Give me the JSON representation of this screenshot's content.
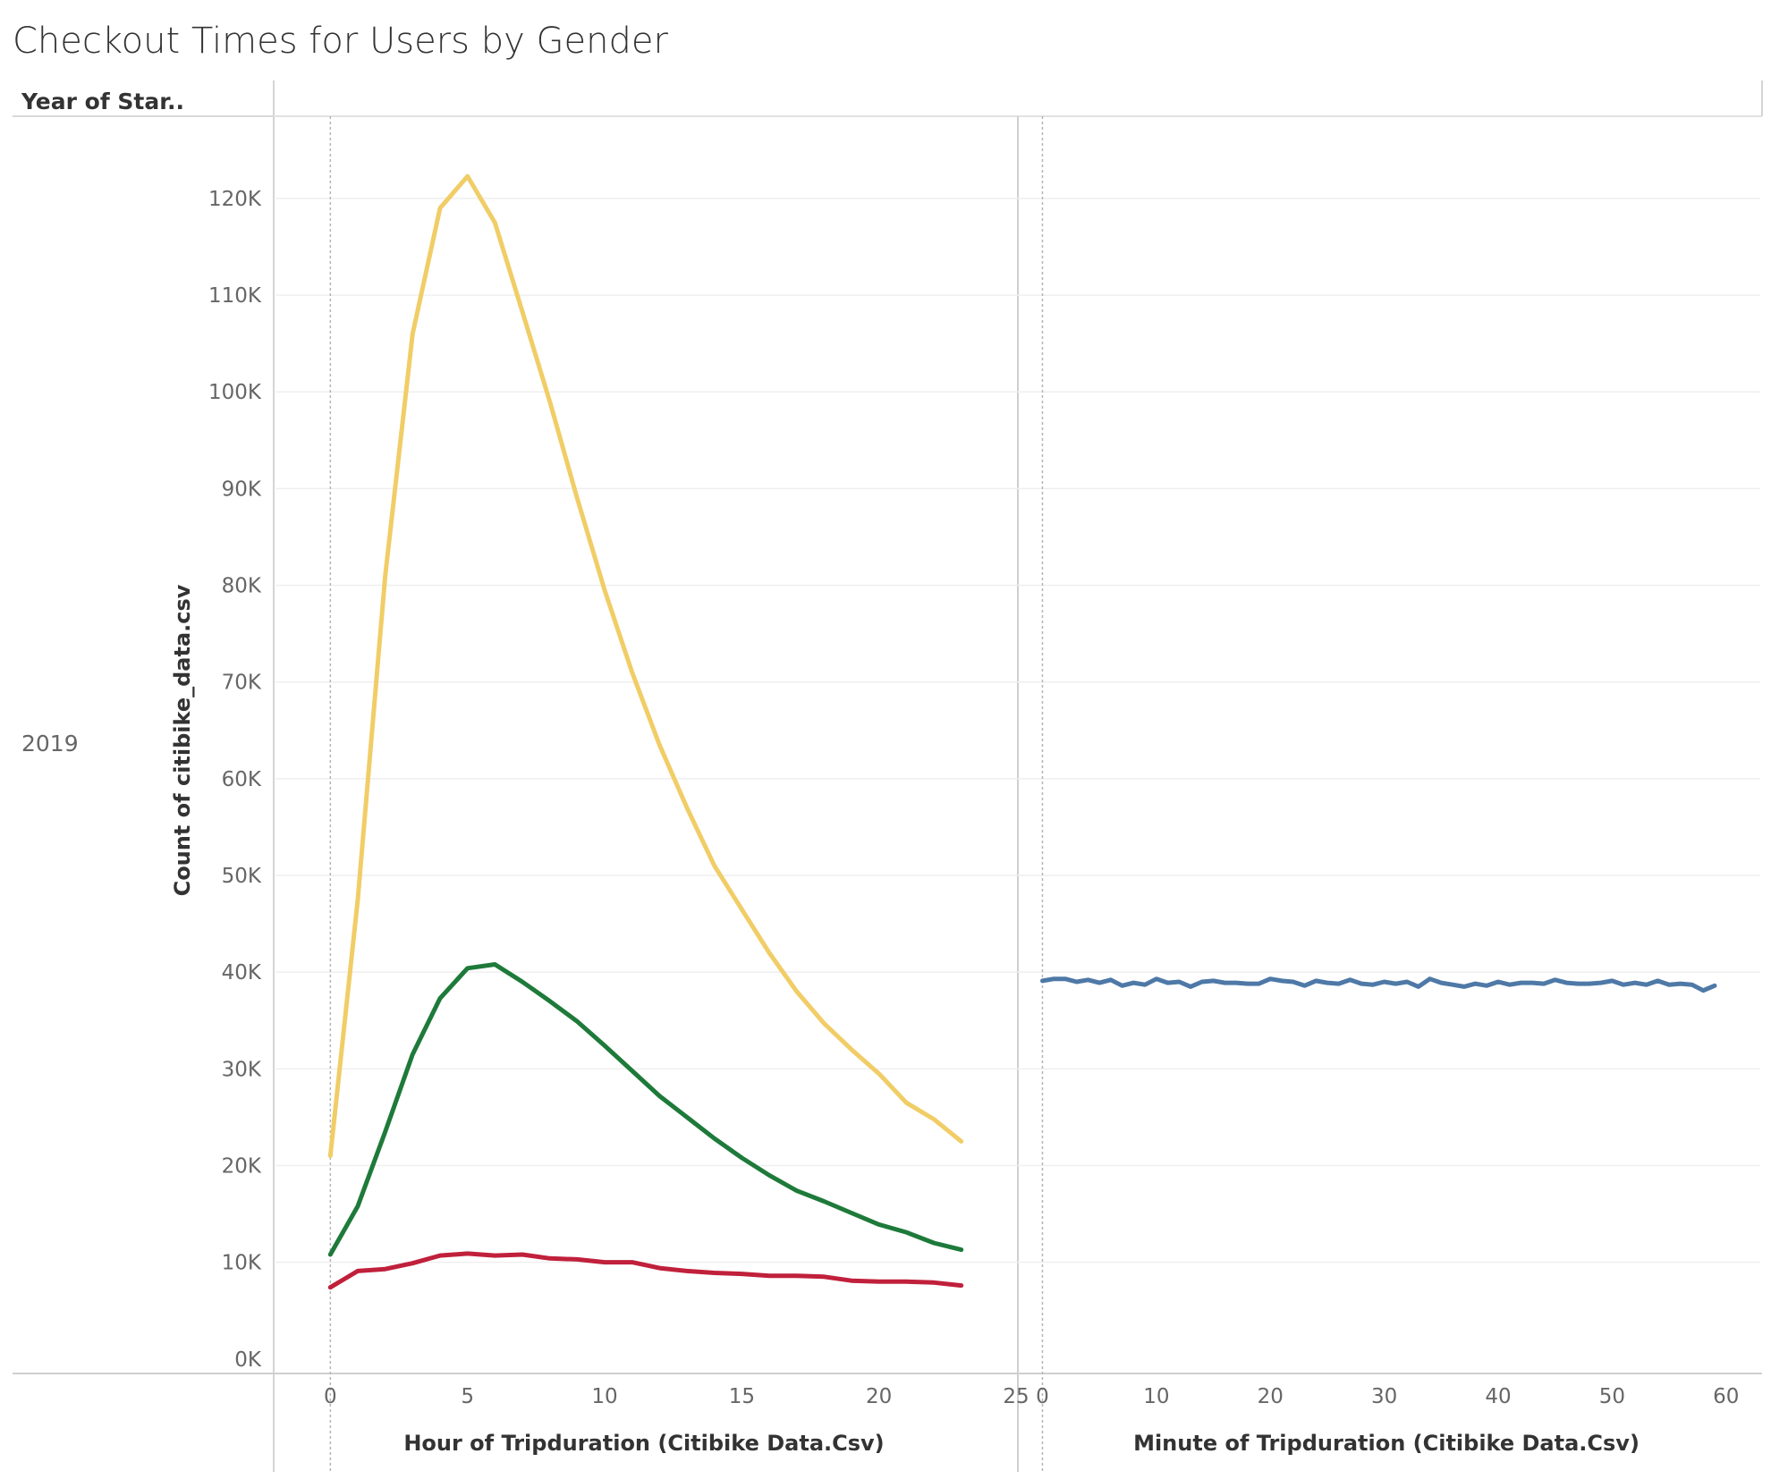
{
  "title": "Checkout Times for Users by Gender",
  "row_header": "Year of Star..",
  "row_value": "2019",
  "colors": {
    "series_gender_1": "#f1cd67",
    "series_gender_2": "#1e7a3a",
    "series_gender_0": "#c0203b",
    "series_minute": "#4e79a7"
  },
  "chart_data": [
    {
      "type": "line",
      "xlabel": "Hour of Tripduration (Citibike Data.Csv)",
      "ylabel": "Count of citibike_data.csv",
      "xlim": [
        -2,
        25
      ],
      "ylim": [
        -1500,
        128500
      ],
      "x_ticks": [
        0,
        5,
        10,
        15,
        20,
        25
      ],
      "y_ticks": [
        {
          "value": 0,
          "label": "0K"
        },
        {
          "value": 10000,
          "label": "10K"
        },
        {
          "value": 20000,
          "label": "20K"
        },
        {
          "value": 30000,
          "label": "30K"
        },
        {
          "value": 40000,
          "label": "40K"
        },
        {
          "value": 50000,
          "label": "50K"
        },
        {
          "value": 60000,
          "label": "60K"
        },
        {
          "value": 70000,
          "label": "70K"
        },
        {
          "value": 80000,
          "label": "80K"
        },
        {
          "value": 90000,
          "label": "90K"
        },
        {
          "value": 100000,
          "label": "100K"
        },
        {
          "value": 110000,
          "label": "110K"
        },
        {
          "value": 120000,
          "label": "120K"
        }
      ],
      "grid": true,
      "x": [
        0,
        1,
        2,
        3,
        4,
        5,
        6,
        7,
        8,
        9,
        10,
        11,
        12,
        13,
        14,
        15,
        16,
        17,
        18,
        19,
        20,
        21,
        22,
        23
      ],
      "series": [
        {
          "color": "#f1cd67",
          "values": [
            21000,
            47500,
            81000,
            106000,
            119000,
            122300,
            117500,
            108300,
            99000,
            89000,
            79500,
            71000,
            63500,
            57000,
            51000,
            46500,
            42000,
            38000,
            34700,
            32000,
            29500,
            26500,
            24800,
            22500
          ]
        },
        {
          "color": "#1e7a3a",
          "values": [
            10800,
            15800,
            23500,
            31500,
            37300,
            40400,
            40800,
            39000,
            37000,
            34900,
            32400,
            29800,
            27200,
            25000,
            22800,
            20800,
            19000,
            17400,
            16300,
            15100,
            13900,
            13100,
            12000,
            11300
          ]
        },
        {
          "color": "#c0203b",
          "values": [
            7400,
            9100,
            9300,
            9900,
            10700,
            10900,
            10700,
            10800,
            10400,
            10300,
            10000,
            10000,
            9400,
            9100,
            8900,
            8800,
            8600,
            8600,
            8500,
            8100,
            8000,
            8000,
            7900,
            7600
          ]
        }
      ]
    },
    {
      "type": "line",
      "xlabel": "Minute of Tripduration (Citibike Data.Csv)",
      "ylabel": "Count of citibike_data.csv",
      "xlim": [
        -2,
        63
      ],
      "ylim": [
        -1500,
        128500
      ],
      "x_ticks": [
        0,
        10,
        20,
        30,
        40,
        50,
        60
      ],
      "grid": true,
      "x": [
        0,
        1,
        2,
        3,
        4,
        5,
        6,
        7,
        8,
        9,
        10,
        11,
        12,
        13,
        14,
        15,
        16,
        17,
        18,
        19,
        20,
        21,
        22,
        23,
        24,
        25,
        26,
        27,
        28,
        29,
        30,
        31,
        32,
        33,
        34,
        35,
        36,
        37,
        38,
        39,
        40,
        41,
        42,
        43,
        44,
        45,
        46,
        47,
        48,
        49,
        50,
        51,
        52,
        53,
        54,
        55,
        56,
        57,
        58,
        59
      ],
      "series": [
        {
          "color": "#4e79a7",
          "values": [
            39100,
            39300,
            39300,
            39000,
            39200,
            38900,
            39200,
            38600,
            38900,
            38700,
            39300,
            38900,
            39000,
            38500,
            39000,
            39100,
            38900,
            38900,
            38800,
            38800,
            39300,
            39100,
            39000,
            38600,
            39100,
            38900,
            38800,
            39200,
            38800,
            38700,
            39000,
            38800,
            39000,
            38500,
            39300,
            38900,
            38700,
            38500,
            38800,
            38600,
            39000,
            38700,
            38900,
            38900,
            38800,
            39200,
            38900,
            38800,
            38800,
            38900,
            39100,
            38700,
            38900,
            38700,
            39100,
            38700,
            38800,
            38700,
            38100,
            38600
          ]
        }
      ]
    }
  ]
}
